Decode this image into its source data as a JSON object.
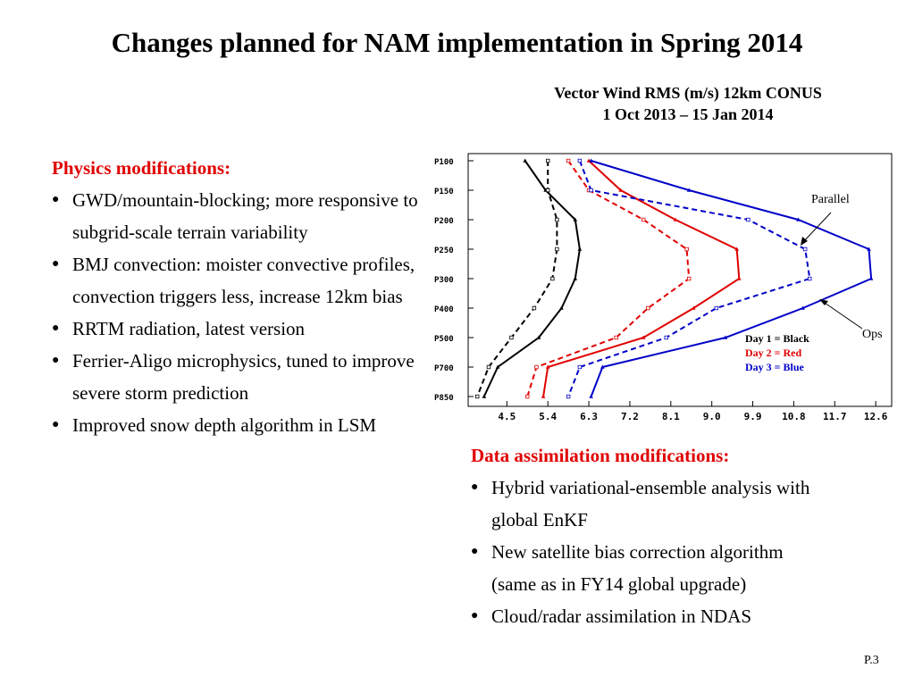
{
  "slide": {
    "title": "Changes planned for NAM implementation in Spring 2014",
    "page_number": "P.3"
  },
  "physics": {
    "heading": "Physics modifications:",
    "bullet_glyph": "●",
    "items": [
      "GWD/mountain-blocking; more responsive to subgrid-scale terrain variability",
      "BMJ convection: moister convective profiles, convection triggers less, increase 12km bias",
      "RRTM radiation, latest version",
      "Ferrier-Aligo microphysics, tuned to improve severe storm prediction",
      "Improved snow depth algorithm in LSM"
    ]
  },
  "assimilation": {
    "heading": "Data assimilation modifications:",
    "items": [
      "Hybrid variational-ensemble analysis with global EnKF",
      "New satellite bias correction algorithm (same as in FY14 global upgrade)",
      "Cloud/radar assimilation in NDAS"
    ]
  },
  "chart_data": {
    "type": "line",
    "title": "Vector Wind RMS (m/s) 12km CONUS",
    "subtitle": "1 Oct 2013 – 15 Jan 2014",
    "y_tick_labels": [
      "P100",
      "P150",
      "P200",
      "P250",
      "P300",
      "P400",
      "P500",
      "P700",
      "P850"
    ],
    "x_ticks": [
      4.5,
      5.4,
      6.3,
      7.2,
      8.1,
      9.0,
      9.9,
      10.8,
      11.7,
      12.6
    ],
    "x_tick_labels": [
      "4.5",
      "5.4",
      "6.3",
      "7.2",
      "8.1",
      "9.0",
      "9.9",
      "10.8",
      "11.7",
      "12.6"
    ],
    "xlim": [
      3.65,
      12.95
    ],
    "legend_labels": {
      "parallel": "Parallel",
      "ops": "Ops"
    },
    "legend_entries": [
      {
        "label": "Day 1 = Black",
        "color": "#000000"
      },
      {
        "label": "Day 2 = Red",
        "color": "#e00000"
      },
      {
        "label": "Day 3 = Blue",
        "color": "#0000c8"
      }
    ],
    "series": [
      {
        "color": "#000000",
        "dash": false,
        "values": [
          4.9,
          5.35,
          6.0,
          6.1,
          6.0,
          5.7,
          5.2,
          4.3,
          4.0
        ]
      },
      {
        "color": "#000000",
        "dash": true,
        "values": [
          5.4,
          5.4,
          5.6,
          5.6,
          5.5,
          5.1,
          4.6,
          4.1,
          3.85
        ]
      },
      {
        "color": "#e00000",
        "dash": false,
        "values": [
          6.3,
          7.0,
          8.2,
          9.55,
          9.6,
          8.6,
          7.5,
          5.4,
          5.3
        ]
      },
      {
        "color": "#e00000",
        "dash": true,
        "values": [
          5.85,
          6.3,
          7.5,
          8.45,
          8.5,
          7.6,
          6.9,
          5.15,
          4.95
        ]
      },
      {
        "color": "#0000c8",
        "dash": false,
        "values": [
          6.35,
          8.5,
          10.9,
          12.45,
          12.5,
          11.0,
          9.3,
          6.6,
          6.35
        ]
      },
      {
        "color": "#0000c8",
        "dash": true,
        "values": [
          6.1,
          6.35,
          9.8,
          11.05,
          11.15,
          9.1,
          8.0,
          6.1,
          5.85
        ]
      }
    ]
  }
}
